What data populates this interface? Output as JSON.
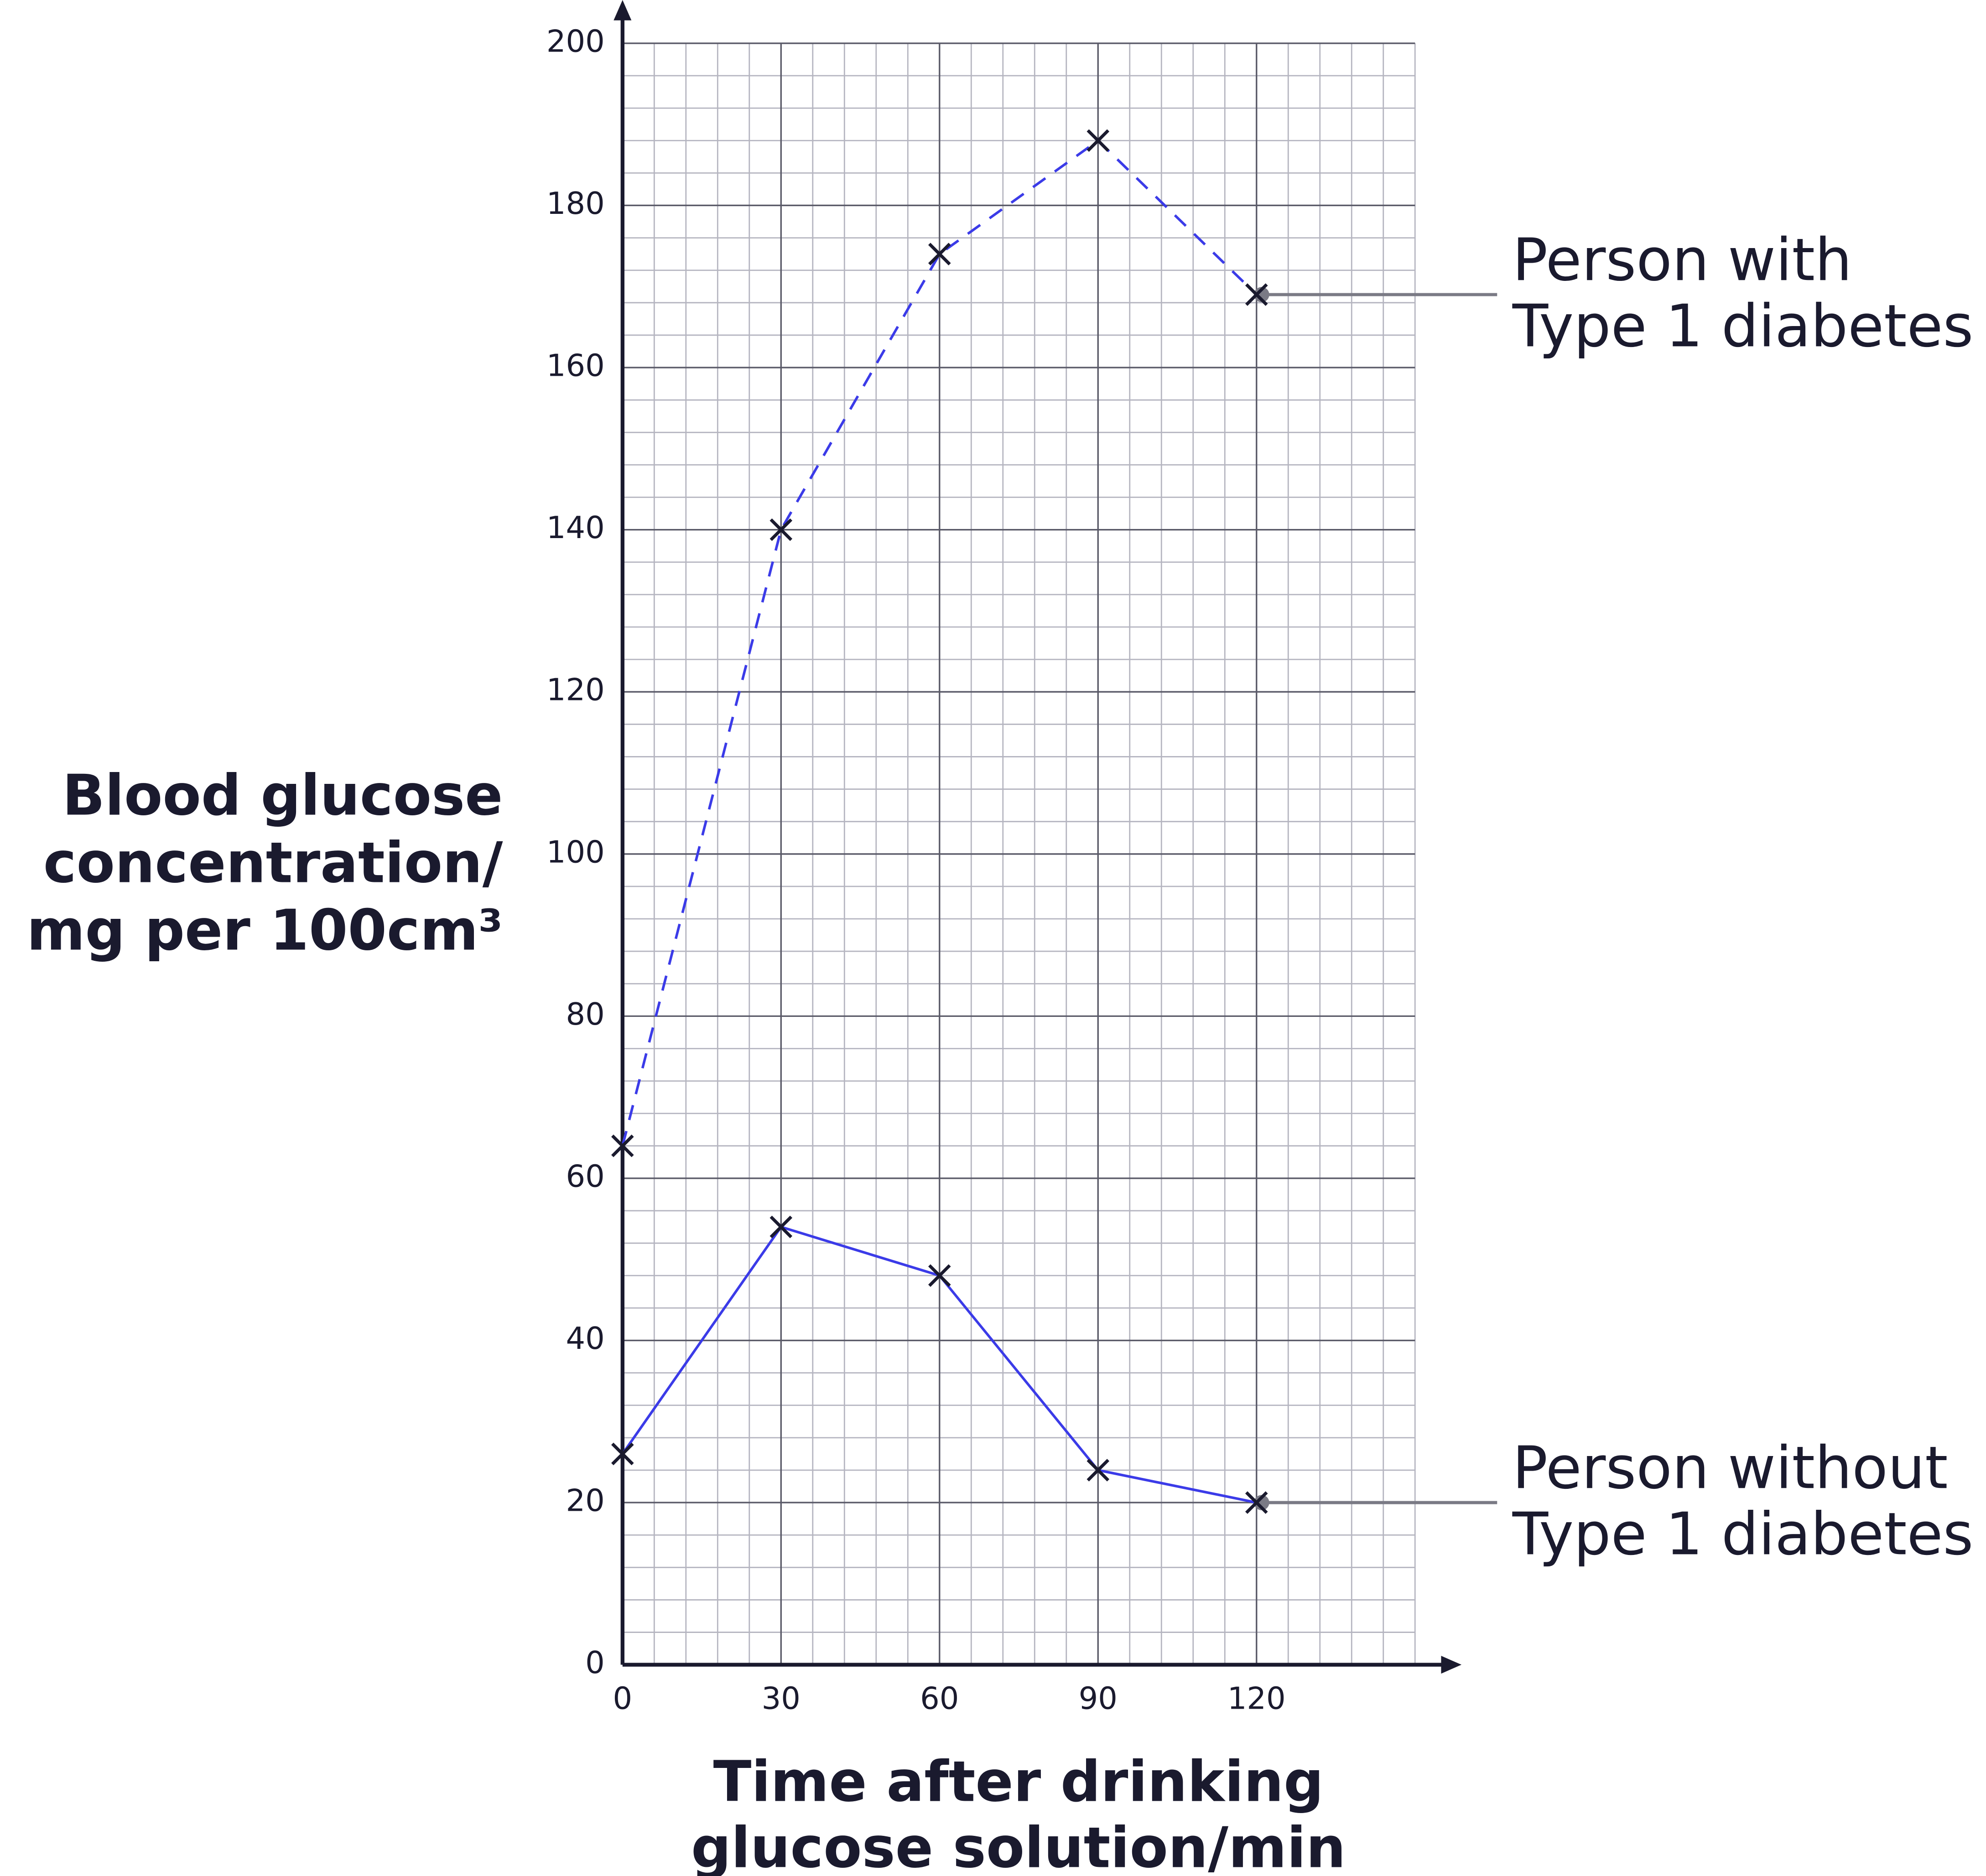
{
  "chart_data": {
    "type": "line",
    "x_label": [
      "Time after drinking",
      "glucose solution/min"
    ],
    "y_label": [
      "Blood glucose",
      "concentration/",
      "mg per 100cm³"
    ],
    "x": [
      0,
      30,
      60,
      90,
      120
    ],
    "series": [
      {
        "label": [
          "Person with",
          "Type 1 diabetes"
        ],
        "color": "#3b3be8",
        "dashed": true,
        "values": [
          64,
          140,
          174,
          188,
          169
        ]
      },
      {
        "label": [
          "Person without",
          "Type 1 diabetes"
        ],
        "color": "#3b3be8",
        "dashed": false,
        "values": [
          26,
          54,
          48,
          24,
          20
        ]
      }
    ],
    "xlim": [
      0,
      150
    ],
    "ylim": [
      0,
      200
    ],
    "xticks": [
      0,
      30,
      60,
      90,
      120
    ],
    "yticks": [
      0,
      20,
      40,
      60,
      80,
      100,
      120,
      140,
      160,
      180,
      200
    ],
    "x_minor_step": 6,
    "y_minor_step": 4,
    "grid": true
  }
}
